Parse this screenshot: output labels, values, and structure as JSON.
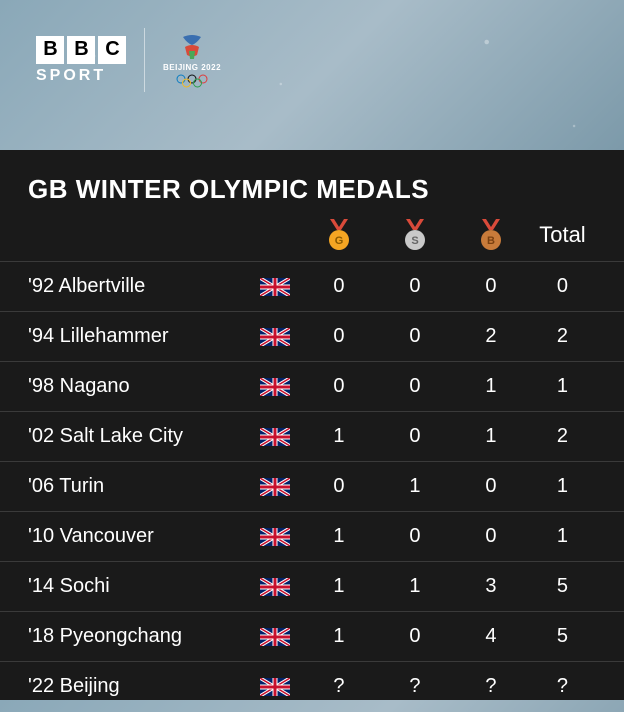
{
  "branding": {
    "bbc_letters": [
      "B",
      "B",
      "C"
    ],
    "sport_label": "SPORT",
    "event_label": "BEIJING 2022"
  },
  "table": {
    "title": "GB WINTER OLYMPIC MEDALS",
    "columns": {
      "gold_letter": "G",
      "silver_letter": "S",
      "bronze_letter": "B",
      "total_label": "Total"
    },
    "medal_colors": {
      "gold": "#f5a623",
      "silver": "#c9c9c9",
      "bronze": "#c87b3a",
      "ribbon": "#d94a3a"
    },
    "rows": [
      {
        "label": "'92 Albertville",
        "gold": "0",
        "silver": "0",
        "bronze": "0",
        "total": "0"
      },
      {
        "label": "'94 Lillehammer",
        "gold": "0",
        "silver": "0",
        "bronze": "2",
        "total": "2"
      },
      {
        "label": "'98 Nagano",
        "gold": "0",
        "silver": "0",
        "bronze": "1",
        "total": "1"
      },
      {
        "label": "'02 Salt Lake City",
        "gold": "1",
        "silver": "0",
        "bronze": "1",
        "total": "2"
      },
      {
        "label": "'06 Turin",
        "gold": "0",
        "silver": "1",
        "bronze": "0",
        "total": "1"
      },
      {
        "label": "'10 Vancouver",
        "gold": "1",
        "silver": "0",
        "bronze": "0",
        "total": "1"
      },
      {
        "label": "'14 Sochi",
        "gold": "1",
        "silver": "1",
        "bronze": "3",
        "total": "5"
      },
      {
        "label": "'18 Pyeongchang",
        "gold": "1",
        "silver": "0",
        "bronze": "4",
        "total": "5"
      },
      {
        "label": "'22 Beijing",
        "gold": "?",
        "silver": "?",
        "bronze": "?",
        "total": "?"
      }
    ]
  },
  "colors": {
    "panel_bg": "#1a1a1a",
    "row_border": "#3a3a3a",
    "text": "#ffffff"
  }
}
